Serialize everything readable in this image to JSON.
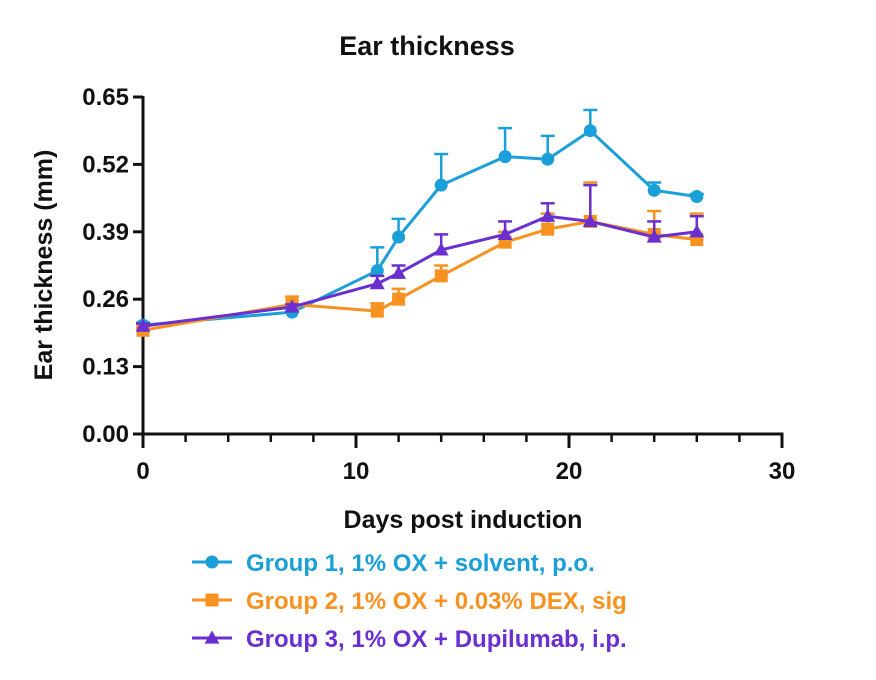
{
  "chart_data": {
    "type": "line",
    "title": "Ear thickness",
    "xlabel": "Days post induction",
    "ylabel": "Ear thickness (mm)",
    "xlim": [
      0,
      30
    ],
    "ylim": [
      0,
      0.65
    ],
    "xticks": [
      "0",
      "10",
      "20",
      "30"
    ],
    "yticks": [
      "0.00",
      "0.13",
      "0.26",
      "0.39",
      "0.52",
      "0.65"
    ],
    "grid": false,
    "legend_position": "bottom",
    "series": [
      {
        "name": "Group 1, 1% OX + solvent, p.o.",
        "color": "#1a9fd8",
        "marker": "circle",
        "x": [
          0,
          7,
          11,
          12,
          14,
          17,
          19,
          21,
          24,
          26
        ],
        "y": [
          0.21,
          0.235,
          0.315,
          0.38,
          0.48,
          0.535,
          0.53,
          0.585,
          0.47,
          0.458
        ],
        "err": [
          0.005,
          0.005,
          0.045,
          0.035,
          0.06,
          0.055,
          0.045,
          0.04,
          0.015,
          0.005
        ]
      },
      {
        "name": "Group 2, 1% OX + 0.03% DEX, sig",
        "color": "#f7911f",
        "marker": "square",
        "x": [
          0,
          7,
          11,
          12,
          14,
          17,
          19,
          21,
          24,
          26
        ],
        "y": [
          0.2,
          0.25,
          0.237,
          0.26,
          0.305,
          0.37,
          0.395,
          0.41,
          0.385,
          0.375
        ],
        "err": [
          0.005,
          0.015,
          0.015,
          0.02,
          0.02,
          0.02,
          0.03,
          0.075,
          0.045,
          0.05
        ]
      },
      {
        "name": "Group 3, 1% OX + Dupilumab, i.p.",
        "color": "#6a2fd0",
        "marker": "triangle",
        "x": [
          0,
          7,
          11,
          12,
          14,
          17,
          19,
          21,
          24,
          26
        ],
        "y": [
          0.208,
          0.245,
          0.29,
          0.31,
          0.355,
          0.385,
          0.42,
          0.41,
          0.38,
          0.39
        ],
        "err": [
          0.005,
          0.005,
          0.015,
          0.015,
          0.03,
          0.025,
          0.025,
          0.07,
          0.03,
          0.03
        ]
      }
    ]
  }
}
